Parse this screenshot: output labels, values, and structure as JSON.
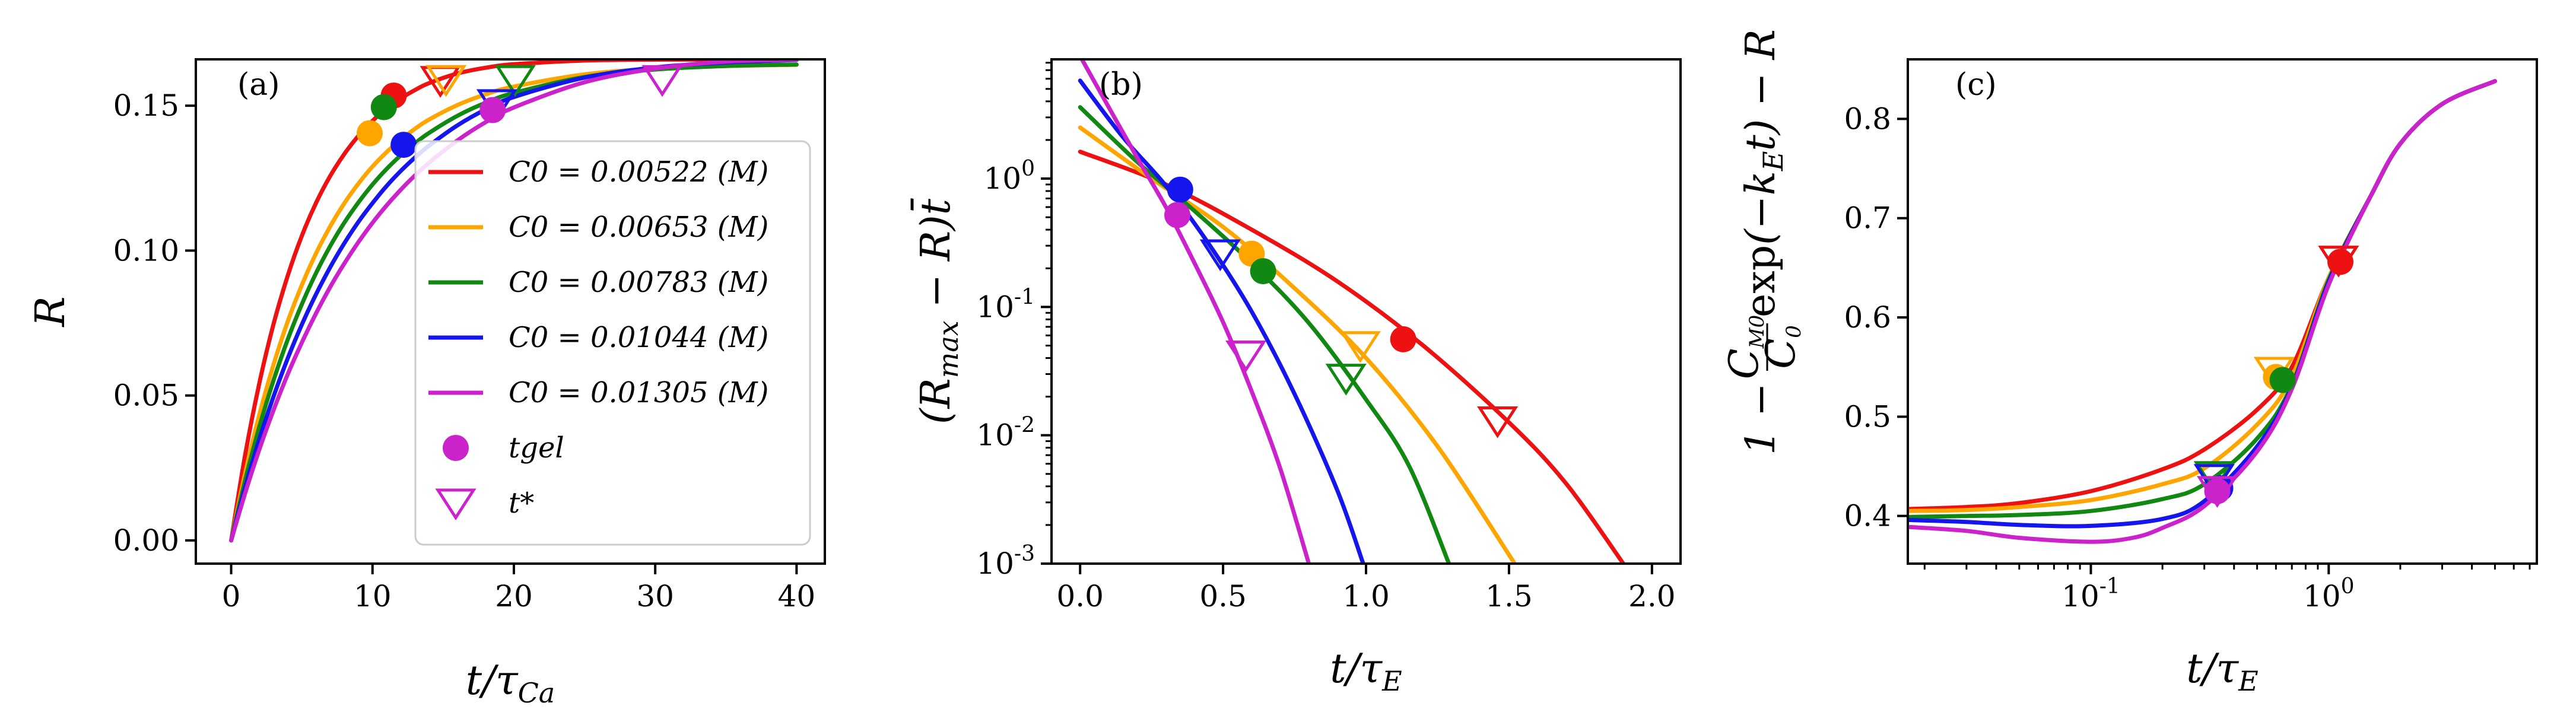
{
  "colors": {
    "red": "#ee1111",
    "orange": "#ffa500",
    "green": "#118811",
    "blue": "#1515ee",
    "magenta": "#cc22cc"
  },
  "chart_data": [
    {
      "panel": "(a)",
      "type": "line",
      "xlabel": "t/τCa",
      "ylabel": "R",
      "xlim": [
        -2.5,
        42
      ],
      "ylim": [
        -0.008,
        0.166
      ],
      "x_ticks": [
        0,
        10,
        20,
        30,
        40
      ],
      "x_tick_labels": [
        "0",
        "10",
        "20",
        "30",
        "40"
      ],
      "y_ticks": [
        0.0,
        0.05,
        0.1,
        0.15
      ],
      "y_tick_labels": [
        "0.00",
        "0.05",
        "0.10",
        "0.15"
      ],
      "legend": {
        "position": "center-right",
        "entries": [
          {
            "label": "C0 = 0.00522 (M)",
            "series": 0,
            "kind": "line"
          },
          {
            "label": "C0 = 0.00653 (M)",
            "series": 1,
            "kind": "line"
          },
          {
            "label": "C0 = 0.00783 (M)",
            "series": 2,
            "kind": "line"
          },
          {
            "label": "C0 = 0.01044 (M)",
            "series": 3,
            "kind": "line"
          },
          {
            "label": "C0 = 0.01305 (M)",
            "series": 4,
            "kind": "line"
          },
          {
            "label": "tgel",
            "series": 4,
            "kind": "circle"
          },
          {
            "label": "t*",
            "series": 4,
            "kind": "triangle"
          }
        ]
      },
      "series": [
        {
          "name": "C0 = 0.00522 (M)",
          "color": "red",
          "x": [
            0,
            1,
            2,
            3,
            4,
            5,
            6,
            7,
            8,
            9,
            10,
            11,
            12,
            13,
            14,
            16,
            18,
            20,
            25,
            30,
            35,
            40
          ],
          "y": [
            0,
            0.0298,
            0.0544,
            0.0747,
            0.0913,
            0.1051,
            0.1164,
            0.1257,
            0.1333,
            0.1396,
            0.1448,
            0.149,
            0.1525,
            0.1554,
            0.1578,
            0.1611,
            0.1631,
            0.1643,
            0.1656,
            0.1659,
            0.1659,
            0.1659
          ],
          "gel": [
            11.5,
            0.1535
          ],
          "tstar": [
            14.8,
            0.1595
          ]
        },
        {
          "name": "C0 = 0.00653 (M)",
          "color": "orange",
          "x": [
            0,
            1,
            2,
            3,
            4,
            5,
            6,
            7,
            8,
            9,
            10,
            11,
            12,
            13,
            14,
            16,
            18,
            20,
            25,
            30,
            35,
            40
          ],
          "y": [
            0,
            0.0234,
            0.0435,
            0.0607,
            0.0755,
            0.0881,
            0.099,
            0.1083,
            0.1163,
            0.1231,
            0.129,
            0.134,
            0.1383,
            0.142,
            0.1452,
            0.1502,
            0.1539,
            0.1566,
            0.1608,
            0.1628,
            0.1637,
            0.1641
          ],
          "gel": [
            9.8,
            0.1405
          ],
          "tstar": [
            15.2,
            0.1598
          ]
        },
        {
          "name": "C0 = 0.00783 (M)",
          "color": "green",
          "x": [
            0,
            1,
            2,
            3,
            4,
            5,
            6,
            7,
            8,
            9,
            10,
            11,
            12,
            13,
            14,
            16,
            18,
            20,
            25,
            30,
            35,
            40
          ],
          "y": [
            0,
            0.021,
            0.0393,
            0.0553,
            0.0693,
            0.0815,
            0.0922,
            0.1015,
            0.1096,
            0.1166,
            0.1228,
            0.1282,
            0.1329,
            0.137,
            0.1406,
            0.1465,
            0.151,
            0.1544,
            0.1599,
            0.1625,
            0.1637,
            0.1642
          ],
          "gel": [
            10.8,
            0.1495
          ],
          "tstar": [
            20.1,
            0.1598
          ]
        },
        {
          "name": "C0 = 0.01044 (M)",
          "color": "blue",
          "x": [
            0,
            1,
            2,
            3,
            4,
            5,
            6,
            7,
            8,
            9,
            10,
            11,
            12,
            13,
            14,
            16,
            18,
            20,
            25,
            30,
            35,
            40
          ],
          "y": [
            0,
            0.0185,
            0.035,
            0.0497,
            0.0628,
            0.0745,
            0.0849,
            0.0942,
            0.1025,
            0.1099,
            0.1164,
            0.1223,
            0.1275,
            0.1321,
            0.1362,
            0.1432,
            0.1487,
            0.153,
            0.1597,
            0.1632,
            0.1649,
            0.1658
          ],
          "gel": [
            12.2,
            0.1365
          ],
          "tstar": [
            18.8,
            0.1515
          ]
        },
        {
          "name": "C0 = 0.01305 (M)",
          "color": "magenta",
          "x": [
            0,
            1,
            2,
            3,
            4,
            5,
            6,
            7,
            8,
            9,
            10,
            11,
            12,
            13,
            14,
            16,
            18,
            20,
            25,
            30,
            35,
            40
          ],
          "y": [
            0,
            0.0165,
            0.0315,
            0.045,
            0.0573,
            0.0683,
            0.0783,
            0.0874,
            0.0955,
            0.1029,
            0.1096,
            0.1156,
            0.121,
            0.1259,
            0.1303,
            0.138,
            0.1443,
            0.1494,
            0.1581,
            0.1628,
            0.1652,
            0.1659
          ],
          "gel": [
            18.5,
            0.1485
          ],
          "tstar": [
            30.5,
            0.1598
          ]
        }
      ]
    },
    {
      "panel": "(b)",
      "type": "line",
      "xlabel": "t/τE",
      "ylabel": "(Rmax − R)t̄",
      "xscale": "linear",
      "yscale": "log",
      "xlim": [
        -0.1,
        2.1
      ],
      "ylim": [
        0.001,
        8.5
      ],
      "x_ticks": [
        0.0,
        0.5,
        1.0,
        1.5,
        2.0
      ],
      "x_tick_labels": [
        "0.0",
        "0.5",
        "1.0",
        "1.5",
        "2.0"
      ],
      "y_ticks": [
        0.001,
        0.01,
        0.1,
        1
      ],
      "y_tick_labels": [
        {
          "base": "10",
          "exp": "-3"
        },
        {
          "base": "10",
          "exp": "-2"
        },
        {
          "base": "10",
          "exp": "-1"
        },
        {
          "base": "10",
          "exp": "0"
        }
      ],
      "series": [
        {
          "name": "C0 = 0.00522 (M)",
          "color": "red",
          "x": [
            0,
            0.3,
            0.6,
            0.9,
            1.2,
            1.5,
            1.7,
            1.9
          ],
          "y": [
            1.62,
            0.9,
            0.4,
            0.158,
            0.05,
            0.0126,
            0.0042,
            0.001
          ],
          "gel": [
            1.13,
            0.056
          ],
          "tstar": [
            1.46,
            0.0135
          ]
        },
        {
          "name": "C0 = 0.00653 (M)",
          "color": "orange",
          "x": [
            0,
            0.25,
            0.5,
            0.75,
            1.0,
            1.25,
            1.52
          ],
          "y": [
            2.5,
            1.0,
            0.42,
            0.14,
            0.04,
            0.0082,
            0.001
          ],
          "gel": [
            0.6,
            0.26
          ],
          "tstar": [
            0.98,
            0.052
          ]
        },
        {
          "name": "C0 = 0.00783 (M)",
          "color": "green",
          "x": [
            0,
            0.2,
            0.4,
            0.6,
            0.8,
            1.0,
            1.15,
            1.29
          ],
          "y": [
            3.6,
            1.35,
            0.56,
            0.22,
            0.075,
            0.019,
            0.0058,
            0.001
          ],
          "gel": [
            0.64,
            0.19
          ],
          "tstar": [
            0.93,
            0.029
          ]
        },
        {
          "name": "C0 = 0.01044 (M)",
          "color": "blue",
          "x": [
            0,
            0.15,
            0.3,
            0.45,
            0.6,
            0.75,
            0.9,
            0.99
          ],
          "y": [
            5.8,
            2.1,
            0.88,
            0.31,
            0.092,
            0.021,
            0.0037,
            0.001
          ],
          "gel": [
            0.35,
            0.82
          ],
          "tstar": [
            0.49,
            0.27
          ]
        },
        {
          "name": "C0 = 0.01305 (M)",
          "color": "magenta",
          "x": [
            0,
            0.1,
            0.2,
            0.3,
            0.4,
            0.5,
            0.6,
            0.7,
            0.8
          ],
          "y": [
            9.0,
            3.6,
            1.45,
            0.6,
            0.22,
            0.076,
            0.022,
            0.0055,
            0.001
          ],
          "gel": [
            0.34,
            0.52
          ],
          "tstar": [
            0.58,
            0.044
          ]
        }
      ]
    },
    {
      "panel": "(c)",
      "type": "line",
      "xlabel": "t/τE",
      "ylabel": "1 − (CM0/C0) exp(−kE t) − R",
      "xscale": "log",
      "yscale": "linear",
      "xlim": [
        0.017,
        7.5
      ],
      "ylim": [
        0.352,
        0.86
      ],
      "x_ticks": [
        0.1,
        1
      ],
      "x_tick_labels": [
        {
          "base": "10",
          "exp": "-1"
        },
        {
          "base": "10",
          "exp": "0"
        }
      ],
      "y_ticks": [
        0.4,
        0.5,
        0.6,
        0.7,
        0.8
      ],
      "y_tick_labels": [
        "0.4",
        "0.5",
        "0.6",
        "0.7",
        "0.8"
      ],
      "series": [
        {
          "name": "C0 = 0.00522 (M)",
          "color": "red",
          "x": [
            0.017,
            0.03,
            0.05,
            0.1,
            0.2,
            0.3,
            0.5,
            0.7,
            1.0,
            1.5,
            2.0,
            3.0,
            5.0
          ],
          "y": [
            0.407,
            0.409,
            0.413,
            0.425,
            0.447,
            0.467,
            0.507,
            0.55,
            0.64,
            0.722,
            0.775,
            0.815,
            0.838
          ],
          "gel": [
            1.12,
            0.656
          ],
          "tstar": [
            1.1,
            0.66
          ]
        },
        {
          "name": "C0 = 0.00653 (M)",
          "color": "orange",
          "x": [
            0.017,
            0.03,
            0.05,
            0.1,
            0.2,
            0.3,
            0.5,
            0.7,
            1.0,
            1.5,
            2.0,
            3.0,
            5.0
          ],
          "y": [
            0.405,
            0.406,
            0.409,
            0.416,
            0.432,
            0.448,
            0.492,
            0.54,
            0.64,
            0.722,
            0.775,
            0.815,
            0.838
          ],
          "gel": [
            0.6,
            0.54
          ],
          "tstar": [
            0.59,
            0.548
          ]
        },
        {
          "name": "C0 = 0.00783 (M)",
          "color": "green",
          "x": [
            0.017,
            0.03,
            0.05,
            0.1,
            0.2,
            0.3,
            0.5,
            0.7,
            1.0,
            1.5,
            2.0,
            3.0,
            5.0
          ],
          "y": [
            0.399,
            0.4,
            0.401,
            0.405,
            0.417,
            0.432,
            0.478,
            0.532,
            0.638,
            0.722,
            0.775,
            0.815,
            0.838
          ],
          "gel": [
            0.64,
            0.537
          ],
          "tstar": [
            0.33,
            0.443
          ]
        },
        {
          "name": "C0 = 0.01044 (M)",
          "color": "blue",
          "x": [
            0.017,
            0.03,
            0.05,
            0.1,
            0.2,
            0.3,
            0.5,
            0.7,
            1.0,
            1.5,
            2.0,
            3.0,
            5.0
          ],
          "y": [
            0.396,
            0.394,
            0.391,
            0.39,
            0.397,
            0.415,
            0.47,
            0.53,
            0.636,
            0.722,
            0.775,
            0.815,
            0.838
          ],
          "gel": [
            0.35,
            0.428
          ],
          "tstar": [
            0.33,
            0.44
          ]
        },
        {
          "name": "C0 = 0.01305 (M)",
          "color": "magenta",
          "x": [
            0.017,
            0.03,
            0.05,
            0.1,
            0.15,
            0.2,
            0.3,
            0.5,
            0.7,
            1.0,
            1.5,
            2.0,
            3.0,
            5.0
          ],
          "y": [
            0.389,
            0.385,
            0.378,
            0.374,
            0.378,
            0.388,
            0.41,
            0.465,
            0.528,
            0.633,
            0.722,
            0.775,
            0.815,
            0.838
          ],
          "gel": [
            0.34,
            0.425
          ],
          "tstar": [
            0.34,
            0.428
          ]
        }
      ]
    }
  ]
}
